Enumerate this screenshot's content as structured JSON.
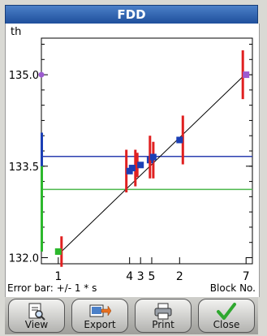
{
  "window": {
    "title": "FDD"
  },
  "plot": {
    "y_unit_label": "th",
    "x_axis_label": "Block No.",
    "error_bar_note": "Error bar: +/- 1 * s"
  },
  "chart_data": {
    "type": "scatter",
    "xlabel": "Block No.",
    "ylabel": "th",
    "ylim": [
      131.9,
      135.6
    ],
    "y_ticks": [
      {
        "value": 132.0,
        "label": "132.0"
      },
      {
        "value": 133.5,
        "label": "133.5"
      },
      {
        "value": 135.0,
        "label": "135.0"
      }
    ],
    "x_ticks": [
      {
        "position": 0.08,
        "label": "1"
      },
      {
        "position": 0.418,
        "label": "4"
      },
      {
        "position": 0.47,
        "label": "3"
      },
      {
        "position": 0.523,
        "label": "5"
      },
      {
        "position": 0.655,
        "label": "2"
      },
      {
        "position": 0.97,
        "label": "7"
      }
    ],
    "points": [
      {
        "block": "1",
        "x": 0.08,
        "y": 132.1,
        "err": 0.25,
        "color": "#2db82d"
      },
      {
        "block": "4",
        "x": 0.418,
        "y": 133.42,
        "err": 0.35,
        "color": "#1b3fb5"
      },
      {
        "block": "4",
        "x": 0.43,
        "y": 133.47,
        "err": 0.3,
        "color": "#1b3fb5"
      },
      {
        "block": "3",
        "x": 0.47,
        "y": 133.52,
        "err": 0.2,
        "color": "#1b3fb5"
      },
      {
        "block": "5",
        "x": 0.515,
        "y": 133.6,
        "err": 0.3,
        "color": "#1b3fb5"
      },
      {
        "block": "5",
        "x": 0.53,
        "y": 133.65,
        "err": 0.35,
        "color": "#1b3fb5"
      },
      {
        "block": "2",
        "x": 0.655,
        "y": 133.93,
        "err": 0.4,
        "color": "#1b3fb5"
      },
      {
        "block": "7",
        "x": 0.97,
        "y": 135.0,
        "err": 0.4,
        "color": "#9c5bd0"
      }
    ],
    "fit_line": {
      "from": [
        0.08,
        132.05
      ],
      "to": [
        0.97,
        135.02
      ],
      "color": "#000000"
    },
    "reference_lines": [
      {
        "y": 133.66,
        "color": "#2b3fb0"
      },
      {
        "y": 133.12,
        "color": "#4cb84c"
      }
    ],
    "left_markers": [
      {
        "y": 135.0,
        "color": "#9c5bd0",
        "type": "point"
      },
      {
        "from": 133.2,
        "to": 134.05,
        "color": "#1b3fb5",
        "type": "bar"
      },
      {
        "from": 132.1,
        "to": 133.5,
        "color": "#2db82d",
        "type": "bar"
      }
    ],
    "grid": false
  },
  "toolbar": {
    "buttons": [
      {
        "name": "view-button",
        "label": "View",
        "icon": "view-icon"
      },
      {
        "name": "export-button",
        "label": "Export",
        "icon": "export-icon"
      },
      {
        "name": "print-button",
        "label": "Print",
        "icon": "print-icon"
      },
      {
        "name": "close-button",
        "label": "Close",
        "icon": "checkmark-icon"
      }
    ]
  },
  "colors": {
    "title_bar": "#2a5db0",
    "error_bar": "#e02020",
    "point_fill": "#1b3fb5"
  }
}
